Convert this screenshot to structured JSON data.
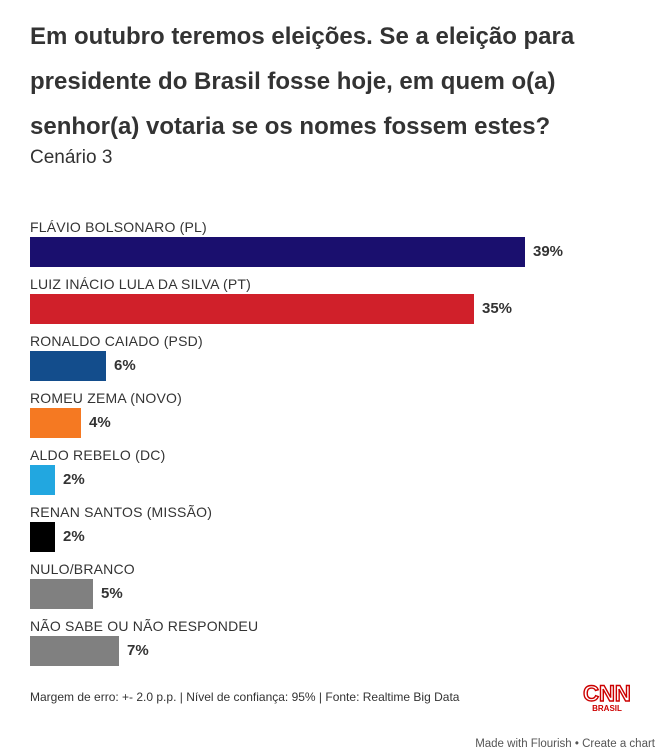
{
  "header": {
    "title": "Em outubro teremos eleições. Se a eleição para presidente do Brasil fosse hoje, em quem o(a) senhor(a) votaria se os nomes fossem estes?",
    "subtitle": "Cenário 3"
  },
  "chart_data": {
    "type": "bar",
    "orientation": "horizontal",
    "title": "Em outubro teremos eleições. Se a eleição para presidente do Brasil fosse hoje, em quem o(a) senhor(a) votaria se os nomes fossem estes?",
    "subtitle": "Cenário 3",
    "xlabel": "",
    "ylabel": "",
    "unit": "%",
    "xlim": [
      0,
      39
    ],
    "categories": [
      "FLÁVIO BOLSONARO (PL)",
      "LUIZ INÁCIO LULA DA SILVA (PT)",
      "RONALDO CAIADO (PSD)",
      "ROMEU ZEMA (NOVO)",
      "ALDO REBELO (DC)",
      "RENAN SANTOS (MISSÃO)",
      "NULO/BRANCO",
      "NÃO SABE OU NÃO RESPONDEU"
    ],
    "values": [
      39,
      35,
      6,
      4,
      2,
      2,
      5,
      7
    ],
    "value_labels": [
      "39%",
      "35%",
      "6%",
      "4%",
      "2%",
      "2%",
      "5%",
      "7%"
    ],
    "colors": [
      "#1a0f6e",
      "#d0202a",
      "#134d8c",
      "#f57922",
      "#22a7e0",
      "#000000",
      "#808080",
      "#808080"
    ]
  },
  "footer": {
    "note": "Margem de erro: +- 2.0 p.p. | Nível de confiança: 95% | Fonte: Realtime Big Data",
    "logo_text": "CNN",
    "logo_sub": "BRASIL",
    "logo_color": "#cc0000",
    "made_with": "Made with Flourish",
    "separator": " • ",
    "create": "Create a chart"
  }
}
